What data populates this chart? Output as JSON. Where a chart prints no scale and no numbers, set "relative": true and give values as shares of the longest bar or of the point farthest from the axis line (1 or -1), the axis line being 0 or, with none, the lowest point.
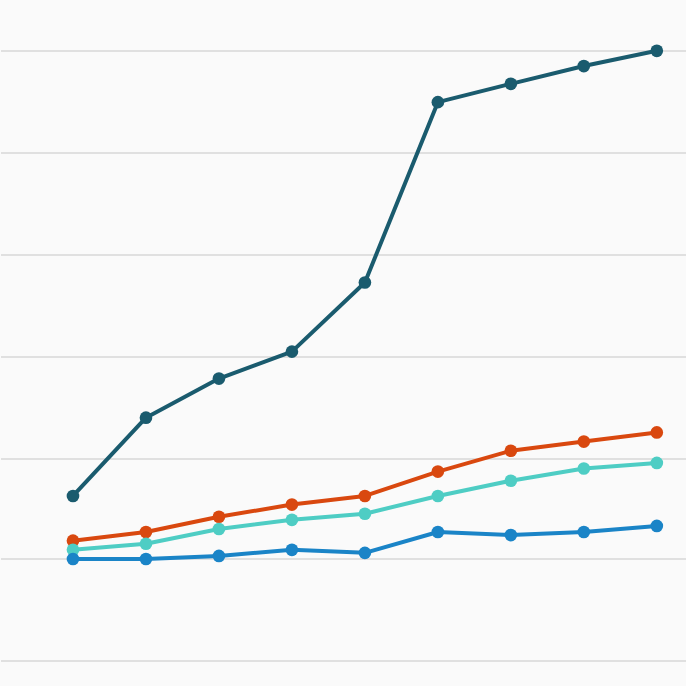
{
  "chart_data": {
    "type": "line",
    "relative": true,
    "grid": "y",
    "marker": "circle",
    "line_style": "solid",
    "legend": false,
    "tick_labels": false,
    "categories": [
      null,
      null,
      null,
      null,
      null,
      null,
      null,
      null,
      null
    ],
    "series": [
      {
        "color": "#1a5b6e",
        "values": [
          0.124,
          0.278,
          0.355,
          0.408,
          0.544,
          0.899,
          0.935,
          0.97,
          1.0
        ]
      },
      {
        "color": "#d9480f",
        "values": [
          0.036,
          0.053,
          0.083,
          0.107,
          0.124,
          0.172,
          0.213,
          0.231,
          0.249
        ]
      },
      {
        "color": "#4ecdc4",
        "values": [
          0.018,
          0.03,
          0.059,
          0.077,
          0.089,
          0.124,
          0.154,
          0.178,
          0.189
        ]
      },
      {
        "color": "#1a84c7",
        "values": [
          0,
          0,
          0.006,
          0.018,
          0.012,
          0.053,
          0.047,
          0.053,
          0.065
        ]
      }
    ]
  }
}
